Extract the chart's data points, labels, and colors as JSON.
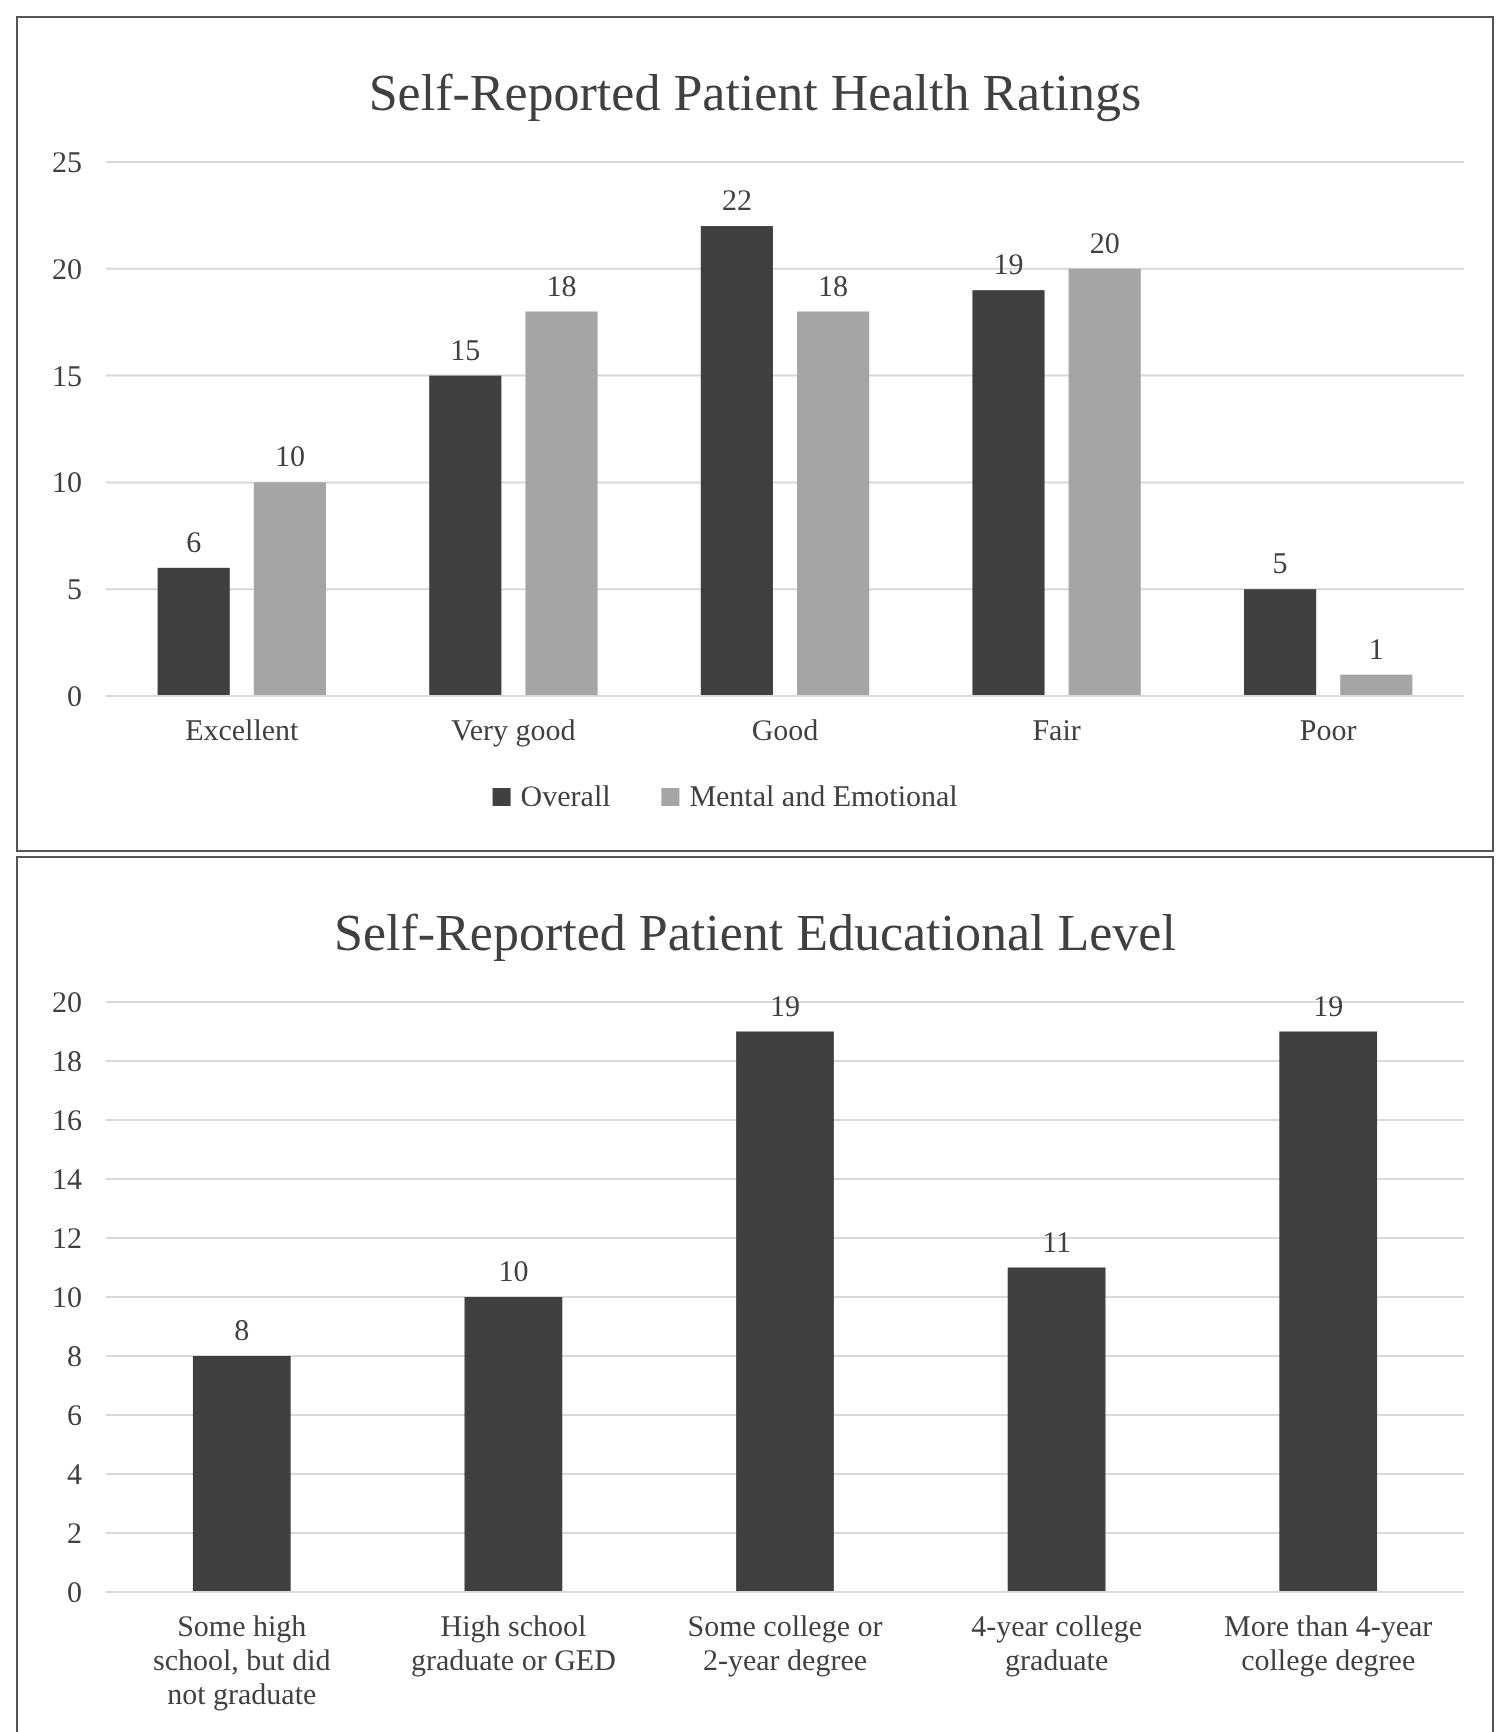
{
  "chart_data": [
    {
      "type": "bar",
      "title": "Self-Reported Patient Health Ratings",
      "categories": [
        "Excellent",
        "Very good",
        "Good",
        "Fair",
        "Poor"
      ],
      "series": [
        {
          "name": "Overall",
          "color": "#404040",
          "values": [
            6,
            15,
            22,
            19,
            5
          ]
        },
        {
          "name": "Mental and Emotional",
          "color": "#a5a5a5",
          "values": [
            10,
            18,
            18,
            20,
            1
          ]
        }
      ],
      "ylim": [
        0,
        25
      ],
      "yticks": [
        0,
        5,
        10,
        15,
        20,
        25
      ],
      "grid": "y",
      "legend": "bottom",
      "data_labels": true
    },
    {
      "type": "bar",
      "title": "Self-Reported Patient Educational Level",
      "categories": [
        "Some high school, but did not graduate",
        "High school graduate or GED",
        "Some college or 2-year degree",
        "4-year college graduate",
        "More than 4-year college degree"
      ],
      "series": [
        {
          "color": "#404040",
          "values": [
            8,
            10,
            19,
            11,
            19
          ]
        }
      ],
      "ylim": [
        0,
        20
      ],
      "yticks": [
        0,
        2,
        4,
        6,
        8,
        10,
        12,
        14,
        16,
        18,
        20
      ],
      "grid": "y",
      "data_labels": true
    }
  ]
}
